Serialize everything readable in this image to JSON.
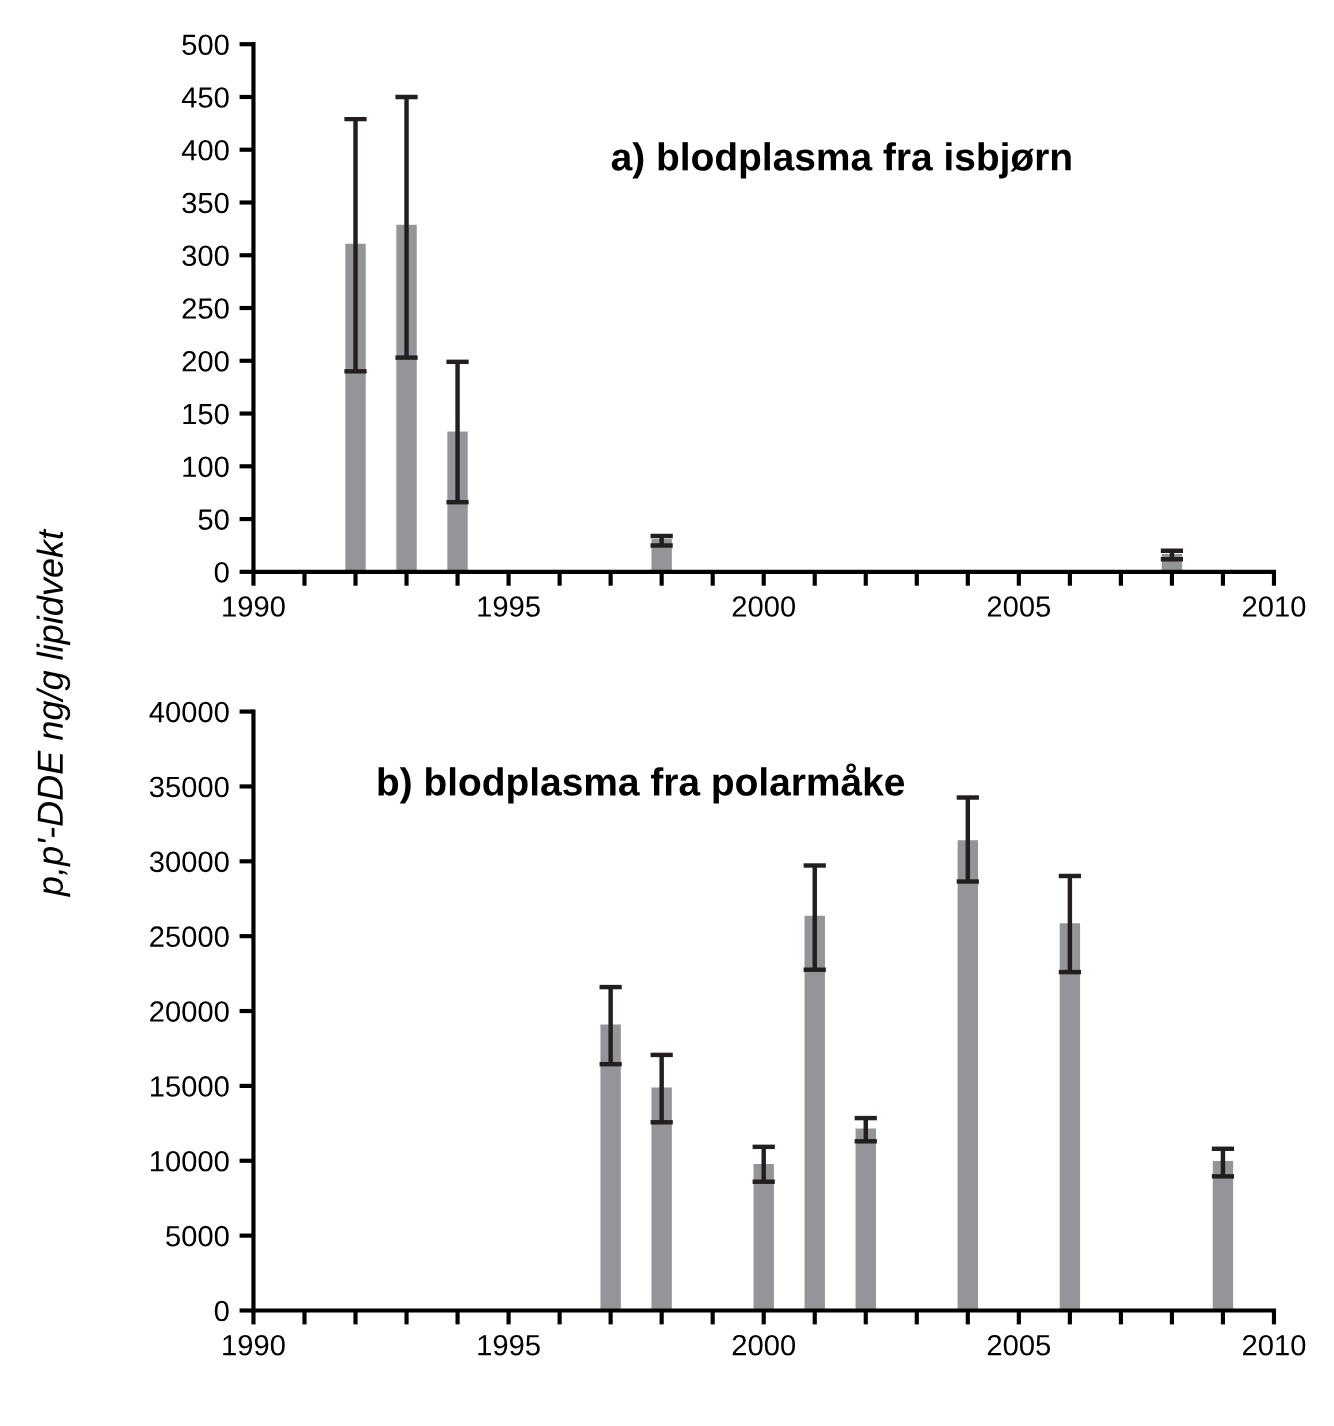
{
  "chart_data": [
    {
      "type": "bar",
      "title": "a) blodplasma fra isbjørn",
      "ylabel": "p,p'-DDE ng/g lipidvekt",
      "x": [
        1992,
        1993,
        1994,
        1998,
        2008
      ],
      "values": [
        311,
        329,
        133,
        31,
        17
      ],
      "errors": [
        [
          190,
          429
        ],
        [
          203,
          450
        ],
        [
          66,
          199
        ],
        [
          25,
          34
        ],
        [
          12,
          20
        ]
      ],
      "color": "#939598",
      "xlim": [
        1990,
        2010
      ],
      "xticks": [
        1990,
        1995,
        2000,
        2005,
        2010
      ],
      "ylim": [
        0,
        500
      ],
      "yticks": [
        0,
        50,
        100,
        150,
        200,
        250,
        300,
        350,
        400,
        450,
        500
      ],
      "grid": false,
      "legend": false
    },
    {
      "type": "bar",
      "title": "b) blodplasma fra polarmåke",
      "x": [
        1997,
        1998,
        2000,
        2001,
        2002,
        2004,
        2006,
        2009
      ],
      "values": [
        19100,
        14900,
        9780,
        26360,
        12160,
        31400,
        25870,
        9990
      ],
      "errors": [
        [
          16450,
          21600
        ],
        [
          12570,
          17070
        ],
        [
          8600,
          10930
        ],
        [
          22760,
          29720
        ],
        [
          11300,
          12850
        ],
        [
          28650,
          34260
        ],
        [
          22600,
          29020
        ],
        [
          8960,
          10800
        ]
      ],
      "color": "#939598",
      "xlim": [
        1990,
        2010
      ],
      "xticks": [
        1990,
        1995,
        2000,
        2005,
        2010
      ],
      "ylim": [
        0,
        40000
      ],
      "yticks": [
        0,
        5000,
        10000,
        15000,
        20000,
        25000,
        30000,
        35000,
        40000
      ],
      "grid": false,
      "legend": false
    }
  ]
}
